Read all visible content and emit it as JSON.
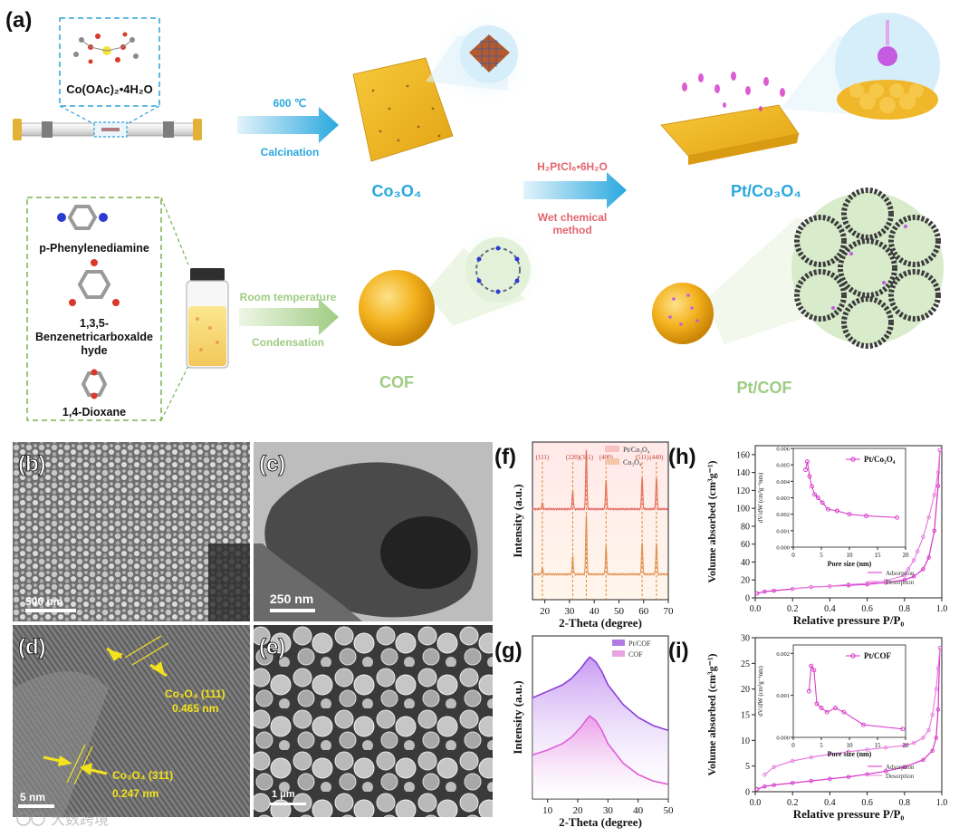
{
  "panel_a": {
    "label": "(a)",
    "precursor_formula": "Co(OAc)₂•4H₂O",
    "calcination_temp": "600 ℃",
    "calcination_label": "Calcination",
    "co3o4_label": "Co₃O₄",
    "pt_reagent": "H₂PtCl₆•6H₂O",
    "wet_line1": "Wet chemical",
    "wet_line2": "method",
    "pt_co3o4_label": "Pt/Co₃O₄",
    "monomer1": "p-Phenylenediamine",
    "monomer2_line1": "1,3,5-",
    "monomer2_line2": "Benzenetricarboxalde",
    "monomer2_line3": "hyde",
    "solvent": "1,4-Dioxane",
    "room_temp_label": "Room temperature",
    "condensation_label": "Condensation",
    "cof_label": "COF",
    "pt_cof_label": "Pt/COF"
  },
  "panel_b": {
    "label": "(b)",
    "scale": "500 nm"
  },
  "panel_c": {
    "label": "(c)",
    "scale": "250 nm"
  },
  "panel_d": {
    "label": "(d)",
    "scale": "5 nm",
    "anno1_phase": "Co₃O₄ (111)",
    "anno1_d": "0.465 nm",
    "anno2_phase": "Co₃O₄ (311)",
    "anno2_d": "0.247 nm"
  },
  "panel_e": {
    "label": "(e)",
    "scale": "1 μm"
  },
  "watermark": "大数跨境",
  "colors": {
    "blue_arrow": "#29a8df",
    "green_arrow": "#9fcc82",
    "magenta": "#d633c9",
    "red_xrd": "#e8706a",
    "orange_xrd": "#e39a62",
    "purple_xrd": "#8b3fd9",
    "pink_xrd": "#df5fd9"
  },
  "chart_data": [
    {
      "panel": "(f)",
      "type": "line",
      "xlabel": "2-Theta (degree)",
      "ylabel": "Intensity (a.u.)",
      "xlim": [
        15,
        70
      ],
      "xticks": [
        20,
        30,
        40,
        50,
        60,
        70
      ],
      "legend": [
        "Pt/Co₃O₄",
        "Co₃O₄"
      ],
      "legend_position": "top-right",
      "peaks": [
        {
          "label": "(111)",
          "x": 19.0,
          "h": 0.1
        },
        {
          "label": "(220)",
          "x": 31.3,
          "h": 0.28
        },
        {
          "label": "(311)",
          "x": 36.8,
          "h": 0.95
        },
        {
          "label": "(400)",
          "x": 44.8,
          "h": 0.45
        },
        {
          "label": "(511)",
          "x": 59.4,
          "h": 0.5
        },
        {
          "label": "(440)",
          "x": 65.2,
          "h": 0.5
        }
      ]
    },
    {
      "panel": "(g)",
      "type": "area",
      "xlabel": "2-Theta (degree)",
      "ylabel": "Intensity (a.u.)",
      "xlim": [
        5,
        50
      ],
      "xticks": [
        10,
        20,
        30,
        40,
        50
      ],
      "legend": [
        "Pt/COF",
        "COF"
      ],
      "legend_position": "top-right",
      "series": [
        {
          "name": "Pt/COF",
          "x": [
            5,
            10,
            15,
            18,
            21,
            23,
            24,
            26,
            28,
            30,
            35,
            40,
            45,
            50
          ],
          "y": [
            0.62,
            0.66,
            0.7,
            0.74,
            0.8,
            0.85,
            0.87,
            0.84,
            0.78,
            0.7,
            0.58,
            0.5,
            0.45,
            0.42
          ]
        },
        {
          "name": "COF",
          "x": [
            5,
            10,
            15,
            18,
            21,
            23,
            24,
            26,
            28,
            30,
            35,
            40,
            45,
            50
          ],
          "y": [
            0.27,
            0.3,
            0.34,
            0.38,
            0.44,
            0.49,
            0.51,
            0.48,
            0.42,
            0.34,
            0.22,
            0.15,
            0.11,
            0.09
          ]
        }
      ]
    },
    {
      "panel": "(h)",
      "type": "line",
      "xlabel": "Relative pressure P/P₀",
      "ylabel": "Volume absorbed (cm³g⁻¹)",
      "xlim": [
        0,
        1.0
      ],
      "xticks": [
        0.0,
        0.2,
        0.4,
        0.6,
        0.8,
        1.0
      ],
      "ylim": [
        0,
        170
      ],
      "yticks": [
        0,
        20,
        40,
        60,
        80,
        100,
        120,
        140,
        160
      ],
      "legend": [
        "Adsorption",
        "Desorption"
      ],
      "legend_position": "bottom-right",
      "series": [
        {
          "name": "Adsorption",
          "x": [
            0.01,
            0.05,
            0.1,
            0.2,
            0.3,
            0.4,
            0.5,
            0.6,
            0.7,
            0.8,
            0.85,
            0.9,
            0.93,
            0.96,
            0.98,
            0.99
          ],
          "y": [
            5,
            7,
            8,
            10,
            12,
            13,
            14,
            15,
            17,
            20,
            24,
            32,
            45,
            75,
            125,
            165
          ]
        },
        {
          "name": "Desorption",
          "x": [
            0.99,
            0.98,
            0.96,
            0.93,
            0.9,
            0.87,
            0.85,
            0.82,
            0.8,
            0.7,
            0.6,
            0.5,
            0.4,
            0.3,
            0.2
          ],
          "y": [
            165,
            140,
            115,
            90,
            68,
            52,
            42,
            32,
            25,
            19,
            16,
            15,
            13,
            12,
            10
          ]
        }
      ],
      "inset": {
        "xlabel": "Pore size (nm)",
        "ylabel": "dV/dW (cm³g⁻¹nm)",
        "legend": "Pt/Co₃O₄",
        "xlim": [
          0,
          20
        ],
        "xticks": [
          0,
          5,
          10,
          15,
          20
        ],
        "ylim": [
          0,
          0.006
        ],
        "yticks": [
          0.0,
          0.001,
          0.002,
          0.003,
          0.004,
          0.005,
          0.006
        ],
        "x": [
          2.2,
          2.5,
          2.9,
          3.3,
          3.8,
          4.4,
          5.2,
          6.2,
          7.8,
          10.0,
          13.0,
          18.5
        ],
        "y": [
          0.0047,
          0.0052,
          0.0043,
          0.0037,
          0.0032,
          0.003,
          0.0027,
          0.0023,
          0.0022,
          0.002,
          0.0019,
          0.0018
        ]
      }
    },
    {
      "panel": "(i)",
      "type": "line",
      "xlabel": "Relative pressure P/P₀",
      "ylabel": "Volume absorbed (cm³g⁻¹)",
      "xlim": [
        0,
        1.0
      ],
      "xticks": [
        0.0,
        0.2,
        0.4,
        0.6,
        0.8,
        1.0
      ],
      "ylim": [
        0,
        30
      ],
      "yticks": [
        0,
        5,
        10,
        15,
        20,
        25,
        30
      ],
      "legend": [
        "Adsorption",
        "Desorption"
      ],
      "legend_position": "bottom-right",
      "series": [
        {
          "name": "Adsorption",
          "x": [
            0.01,
            0.05,
            0.1,
            0.2,
            0.3,
            0.4,
            0.5,
            0.6,
            0.7,
            0.8,
            0.9,
            0.95,
            0.97,
            0.98,
            0.99
          ],
          "y": [
            0.5,
            1.0,
            1.3,
            1.7,
            2.1,
            2.5,
            2.9,
            3.4,
            4.0,
            4.8,
            6.2,
            8.0,
            10.5,
            16.0,
            28.0
          ]
        },
        {
          "name": "Desorption",
          "x": [
            0.99,
            0.98,
            0.97,
            0.95,
            0.93,
            0.9,
            0.85,
            0.8,
            0.7,
            0.6,
            0.5,
            0.4,
            0.3,
            0.2,
            0.1,
            0.05
          ],
          "y": [
            28.0,
            24.0,
            20.0,
            15.0,
            12.0,
            10.5,
            9.5,
            9.0,
            8.6,
            8.2,
            7.8,
            7.3,
            6.7,
            6.0,
            4.8,
            3.3
          ]
        }
      ],
      "inset": {
        "xlabel": "Pore size (nm)",
        "ylabel": "dV/dW (cm³g⁻¹nm)",
        "legend": "Pt/COF",
        "xlim": [
          0,
          20
        ],
        "xticks": [
          0,
          5,
          10,
          15,
          20
        ],
        "ylim": [
          0,
          0.0022
        ],
        "yticks": [
          0.0,
          0.001,
          0.002
        ],
        "x": [
          2.8,
          3.2,
          3.7,
          4.2,
          5.0,
          6.0,
          7.5,
          9.0,
          12.5,
          19.5
        ],
        "y": [
          0.0011,
          0.0017,
          0.0016,
          0.0008,
          0.0007,
          0.0006,
          0.0007,
          0.0006,
          0.0003,
          0.0002
        ]
      }
    }
  ]
}
